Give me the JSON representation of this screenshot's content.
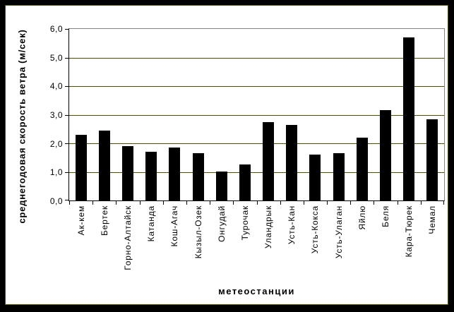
{
  "chart_data": {
    "type": "bar",
    "title": "",
    "xlabel": "метеостанции",
    "ylabel": "среднегодовая скорость ветра (м/сек)",
    "categories": [
      "Ак-кем",
      "Бертек",
      "Горно-Алтайск",
      "Катанда",
      "Кош-Агач",
      "Кызыл-Озек",
      "Онгудай",
      "Турочак",
      "Уландрык",
      "Усть-Кан",
      "Усть-Кокса",
      "Усть-Улаган",
      "Яйлю",
      "Беля",
      "Кара-Тюрек",
      "Чемал"
    ],
    "values": [
      2.3,
      2.45,
      1.9,
      1.7,
      1.85,
      1.65,
      1.0,
      1.25,
      2.75,
      2.65,
      1.6,
      1.65,
      2.2,
      3.15,
      5.7,
      2.85
    ],
    "ylim": [
      0,
      6
    ],
    "ytick_step": 1,
    "ytick_labels": [
      "0,0",
      "1,0",
      "2,0",
      "3,0",
      "4,0",
      "5,0",
      "6,0"
    ],
    "grid": true,
    "legend": "none",
    "layout_hints": {
      "category_label_rotation": "90deg-ccw-bottom-to-top",
      "plot_background": "white-on-black-window"
    },
    "colors": {
      "bar": "#000000",
      "gridline": "#4d4d00",
      "frame_line": "#4d4d00",
      "plot_border": "#848284",
      "axis": "#000000",
      "text": "#000000",
      "plot_bg": "#ffffff",
      "outer_bg": "#000000"
    }
  }
}
